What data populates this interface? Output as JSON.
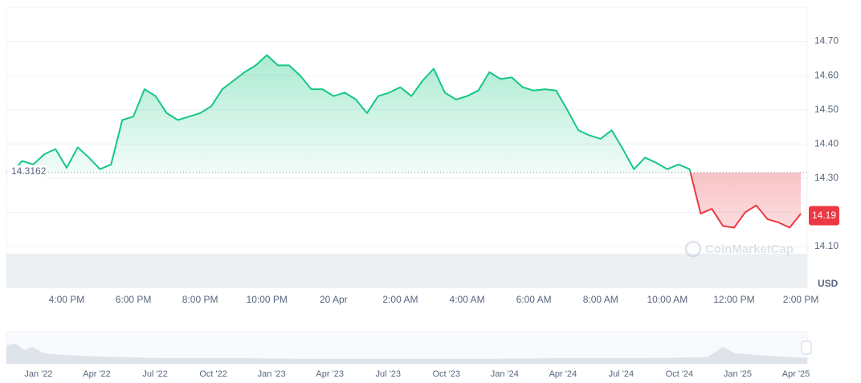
{
  "chart_data": {
    "type": "line",
    "categories": [
      null,
      null,
      null,
      null,
      null,
      "4:00 PM",
      null,
      null,
      null,
      null,
      null,
      "6:00 PM",
      null,
      null,
      null,
      null,
      null,
      "8:00 PM",
      null,
      null,
      null,
      null,
      null,
      "10:00 PM",
      null,
      null,
      null,
      null,
      null,
      "20 Apr",
      null,
      null,
      null,
      null,
      null,
      "2:00 AM",
      null,
      null,
      null,
      null,
      null,
      "4:00 AM",
      null,
      null,
      null,
      null,
      null,
      "6:00 AM",
      null,
      null,
      null,
      null,
      null,
      "8:00 AM",
      null,
      null,
      null,
      null,
      null,
      "10:00 AM",
      null,
      null,
      null,
      null,
      null,
      "12:00 PM",
      null,
      null,
      null,
      null,
      null,
      "2:00 PM"
    ],
    "values": [
      14.314,
      14.35,
      14.34,
      14.37,
      14.385,
      14.33,
      14.39,
      14.36,
      14.326,
      14.34,
      14.47,
      14.48,
      14.56,
      14.54,
      14.49,
      14.47,
      14.48,
      14.49,
      14.51,
      14.56,
      14.585,
      14.61,
      14.63,
      14.66,
      14.63,
      14.63,
      14.6,
      14.56,
      14.56,
      14.54,
      14.55,
      14.53,
      14.49,
      14.54,
      14.55,
      14.566,
      14.54,
      14.585,
      14.62,
      14.55,
      14.53,
      14.54,
      14.556,
      14.61,
      14.59,
      14.595,
      14.566,
      14.556,
      14.56,
      14.556,
      14.5,
      14.44,
      14.425,
      14.415,
      14.44,
      14.385,
      14.326,
      14.36,
      14.345,
      14.326,
      14.34,
      14.326,
      14.196,
      14.21,
      14.16,
      14.155,
      14.2,
      14.22,
      14.18,
      14.17,
      14.155,
      14.196
    ],
    "up_color": "#16c784",
    "down_color": "#ea3943",
    "baseline": 14.3162,
    "current_price": 14.19,
    "ylim": [
      13.98,
      14.8
    ],
    "yticks": [
      {
        "value": 14.1,
        "label": "14.10"
      },
      {
        "value": 14.2,
        "label": "14.20"
      },
      {
        "value": 14.3,
        "label": "14.30"
      },
      {
        "value": 14.4,
        "label": "14.40"
      },
      {
        "value": 14.5,
        "label": "14.50"
      },
      {
        "value": 14.6,
        "label": "14.60"
      },
      {
        "value": 14.7,
        "label": "14.70"
      }
    ],
    "grid": true,
    "currency": "USD",
    "watermark": "CoinMarketCap",
    "navigator": {
      "labels": [
        "Jan '22",
        "Apr '22",
        "Jul '22",
        "Oct '22",
        "Jan '23",
        "Apr '23",
        "Jul '23",
        "Oct '23",
        "Jan '24",
        "Apr '24",
        "Jul '24",
        "Oct '24",
        "Jan '25",
        "Apr '25"
      ]
    }
  }
}
